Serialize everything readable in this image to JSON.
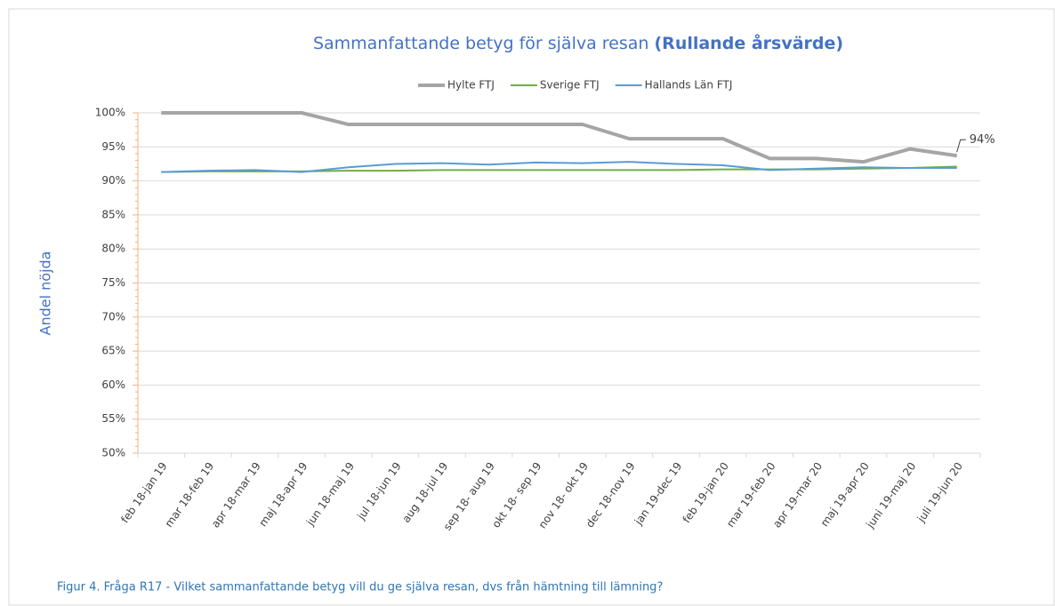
{
  "chart_data": {
    "type": "line",
    "title": "Sammanfattande betyg för själva resan",
    "title_emphasis": "(Rullande årsvärde)",
    "y_label": "Andel nöjda",
    "caption": "Figur 4. Fråga R17 - Vilket sammanfattande betyg vill du ge själva resan, dvs från hämtning till lämning?",
    "categories": [
      "feb 18-jan 19",
      "mar 18-feb 19",
      "apr 18-mar 19",
      "maj 18-apr 19",
      "jun 18-maj 19",
      "jul 18-jun 19",
      "aug 18-jul 19",
      "sep 18- aug 19",
      "okt 18- sep 19",
      "nov 18- okt 19",
      "dec 18-nov 19",
      "jan 19-dec 19",
      "feb 19-jan 20",
      "mar 19-feb 20",
      "apr 19-mar 20",
      "maj 19-apr 20",
      "juni 19-maj 20",
      "juli 19-jun 20"
    ],
    "series": [
      {
        "name": "Hylte FTJ",
        "color": "#a5a5a5",
        "width": 4,
        "values": [
          100,
          100,
          100,
          100,
          98.3,
          98.3,
          98.3,
          98.3,
          98.3,
          98.3,
          96.2,
          96.2,
          96.2,
          93.3,
          93.3,
          92.8,
          94.7,
          93.7
        ],
        "value_labels": [
          null,
          null,
          null,
          null,
          null,
          null,
          null,
          null,
          null,
          null,
          null,
          null,
          null,
          null,
          null,
          null,
          null,
          "94%"
        ]
      },
      {
        "name": "Sverige FTJ",
        "color": "#70ad47",
        "width": 2,
        "values": [
          91.3,
          91.4,
          91.4,
          91.4,
          91.5,
          91.5,
          91.6,
          91.6,
          91.6,
          91.6,
          91.6,
          91.6,
          91.7,
          91.7,
          91.7,
          91.8,
          91.9,
          92.1
        ]
      },
      {
        "name": "Hallands Län FTJ",
        "color": "#5b9bd5",
        "width": 2,
        "values": [
          91.3,
          91.5,
          91.6,
          91.3,
          92.0,
          92.5,
          92.6,
          92.4,
          92.7,
          92.6,
          92.8,
          92.5,
          92.3,
          91.6,
          91.8,
          92.0,
          91.9,
          91.9
        ]
      }
    ],
    "ylim": [
      50,
      100
    ],
    "yticks": [
      {
        "value": 50,
        "label": "50%"
      },
      {
        "value": 55,
        "label": "55%"
      },
      {
        "value": 60,
        "label": "60%"
      },
      {
        "value": 65,
        "label": "65%"
      },
      {
        "value": 70,
        "label": "70%"
      },
      {
        "value": 75,
        "label": "75%"
      },
      {
        "value": 80,
        "label": "80%"
      },
      {
        "value": 85,
        "label": "85%"
      },
      {
        "value": 90,
        "label": "90%"
      },
      {
        "value": 95,
        "label": "95%"
      },
      {
        "value": 100,
        "label": "100%"
      }
    ],
    "grid": true,
    "legend": "top"
  }
}
